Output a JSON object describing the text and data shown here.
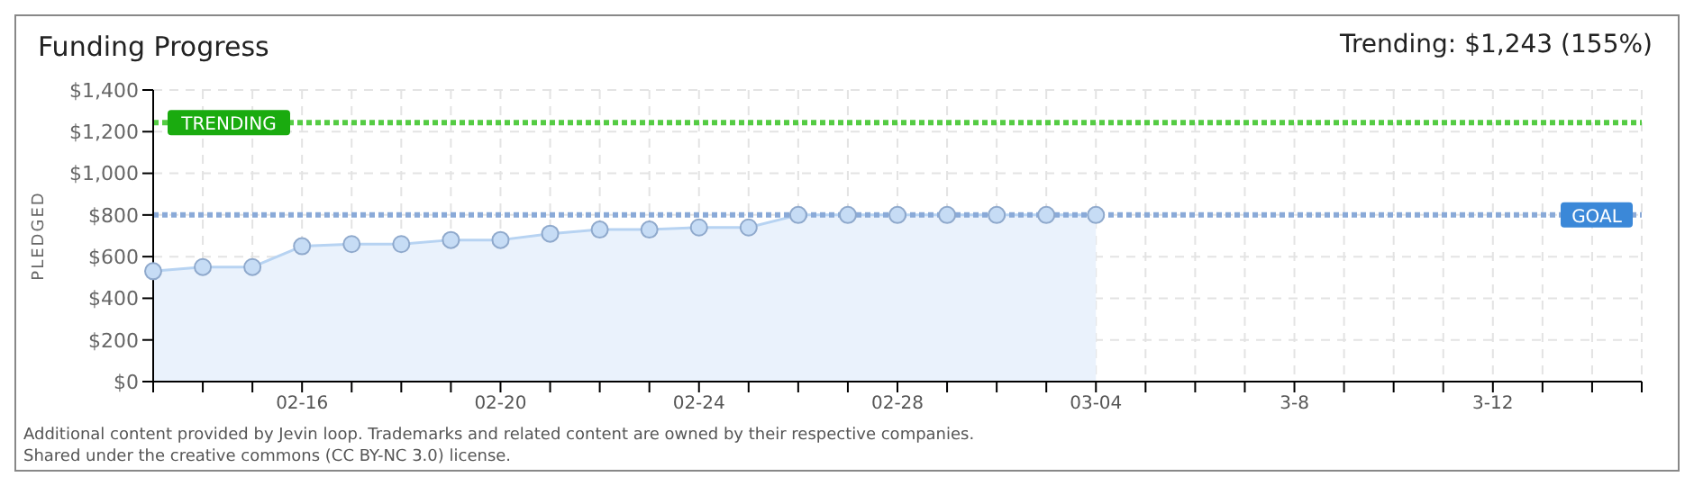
{
  "chart_data": {
    "type": "area",
    "title": "Funding Progress",
    "subtitle": "Trending: $1,243 (155%)",
    "ylabel": "PLEDGED",
    "categories": [
      null,
      null,
      null,
      "02-16",
      null,
      null,
      null,
      "02-20",
      null,
      null,
      null,
      "02-24",
      null,
      null,
      null,
      "02-28",
      null,
      null,
      null,
      "03-04",
      null,
      null,
      null,
      "3-8",
      null,
      null,
      null,
      "3-12",
      null,
      null,
      null
    ],
    "series": [
      {
        "color": "#b7d3f2",
        "values": [
          530,
          550,
          550,
          650,
          660,
          660,
          680,
          680,
          710,
          730,
          730,
          740,
          740,
          800,
          800,
          800,
          800,
          800,
          800,
          800,
          null,
          null,
          null,
          null,
          null,
          null,
          null,
          null,
          null,
          null,
          null
        ]
      }
    ],
    "ylim": [
      0,
      1400
    ],
    "yticks": [
      {
        "value": 0,
        "label": "$0"
      },
      {
        "value": 200,
        "label": "$200"
      },
      {
        "value": 400,
        "label": "$400"
      },
      {
        "value": 600,
        "label": "$600"
      },
      {
        "value": 800,
        "label": "$800"
      },
      {
        "value": 1000,
        "label": "$1,000"
      },
      {
        "value": 1200,
        "label": "$1,200"
      },
      {
        "value": 1400,
        "label": "$1,400"
      }
    ],
    "ref_lines": [
      {
        "axis": "y",
        "value": 1243,
        "label": "TRENDING",
        "color": "#55cc44",
        "line_style": "dotted"
      },
      {
        "axis": "y",
        "value": 800,
        "label": "GOAL",
        "color": "#8aaad8",
        "line_style": "dotted"
      }
    ],
    "grid": true,
    "marker": "circle",
    "annotations": [
      "Additional content provided by Jevin loop. Trademarks and related content are owned by their respective companies.",
      "Shared under the creative commons (CC BY-NC 3.0) license."
    ]
  }
}
